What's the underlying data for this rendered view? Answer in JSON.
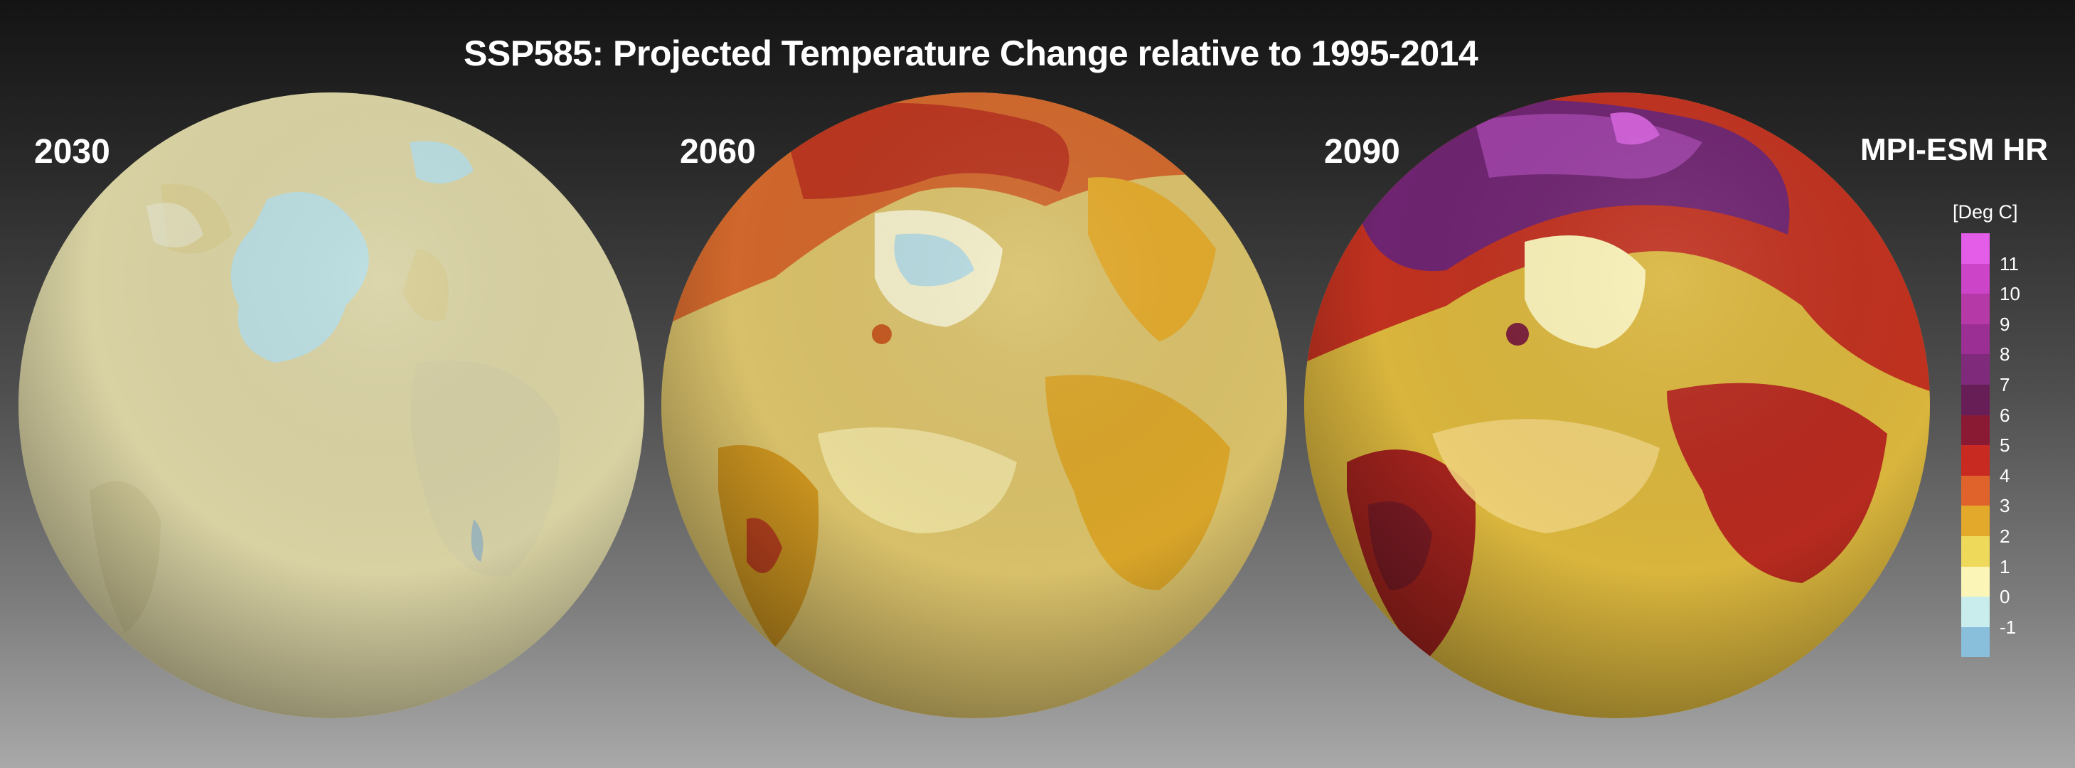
{
  "title": "SSP585: Projected Temperature Change relative to 1995-2014",
  "model": "MPI-ESM HR",
  "globes": [
    {
      "year": "2030"
    },
    {
      "year": "2060"
    },
    {
      "year": "2090"
    }
  ],
  "legend": {
    "unit": "[Deg C]",
    "ticks": [
      "11",
      "10",
      "9",
      "8",
      "7",
      "6",
      "5",
      "4",
      "3",
      "2",
      "1",
      "0",
      "-1"
    ],
    "colors": [
      "#e45de8",
      "#cc44c8",
      "#b53aa8",
      "#9c2f94",
      "#802a7c",
      "#671e56",
      "#8a1a33",
      "#c82a22",
      "#e0632c",
      "#e2a92a",
      "#efd95a",
      "#fbf6b8",
      "#c9ecec",
      "#8abfdc"
    ]
  }
}
